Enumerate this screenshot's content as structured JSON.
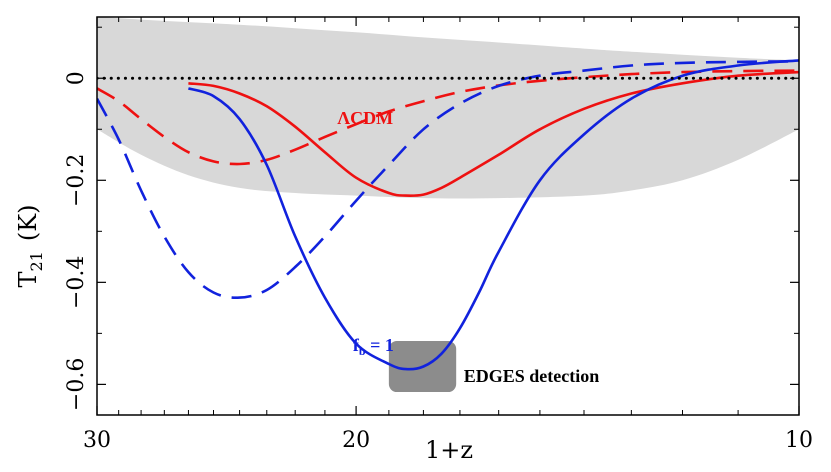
{
  "chart_data": {
    "type": "line",
    "xlabel": "1+z",
    "ylabel": "T",
    "ylabel_sub": "21",
    "ylabel_unit": "(K)",
    "x_scale": "log",
    "x_reversed": true,
    "xlim": [
      30,
      10
    ],
    "ylim": [
      -0.66,
      0.12
    ],
    "x_ticks": [
      30,
      20,
      10
    ],
    "y_ticks": [
      0,
      -0.2,
      -0.4,
      -0.6
    ],
    "y_tick_labels": [
      "0",
      "−0.2",
      "−0.4",
      "−0.6"
    ],
    "colors": {
      "red": "#ee1111",
      "blue": "#1122dd",
      "band": "#d8d8d8",
      "box": "#8c8c8c"
    },
    "series": [
      {
        "id": "lcdm-solid",
        "style": "solid",
        "color": "red",
        "x": [
          26.0,
          25.0,
          24.0,
          23.0,
          22.0,
          21.0,
          20.0,
          19.0,
          18.5,
          18.0,
          17.5,
          17.0,
          16.0,
          15.0,
          14.0,
          13.0,
          12.0,
          11.0,
          10.0
        ],
        "y": [
          -0.01,
          -0.015,
          -0.03,
          -0.055,
          -0.095,
          -0.145,
          -0.195,
          -0.225,
          -0.23,
          -0.228,
          -0.215,
          -0.195,
          -0.15,
          -0.1,
          -0.06,
          -0.03,
          -0.01,
          0.005,
          0.012
        ]
      },
      {
        "id": "lcdm-dashed",
        "style": "dashed",
        "color": "red",
        "x": [
          30.0,
          29.0,
          28.0,
          27.0,
          26.0,
          25.0,
          24.0,
          23.0,
          22.0,
          21.0,
          20.0,
          19.0,
          18.0,
          17.0,
          16.0,
          15.0,
          14.0,
          13.0,
          12.0,
          11.0,
          10.0
        ],
        "y": [
          -0.02,
          -0.045,
          -0.08,
          -0.115,
          -0.145,
          -0.163,
          -0.168,
          -0.16,
          -0.14,
          -0.115,
          -0.09,
          -0.065,
          -0.045,
          -0.027,
          -0.014,
          -0.005,
          0.002,
          0.008,
          0.012,
          0.014,
          0.015
        ]
      },
      {
        "id": "fb1-solid",
        "style": "solid",
        "color": "blue",
        "x": [
          26.0,
          25.0,
          24.0,
          23.0,
          22.0,
          21.0,
          20.0,
          19.0,
          18.5,
          18.0,
          17.5,
          17.0,
          16.5,
          16.0,
          15.0,
          14.0,
          13.0,
          12.0,
          11.0,
          10.0
        ],
        "y": [
          -0.02,
          -0.035,
          -0.08,
          -0.17,
          -0.31,
          -0.43,
          -0.52,
          -0.56,
          -0.57,
          -0.565,
          -0.54,
          -0.49,
          -0.42,
          -0.34,
          -0.2,
          -0.11,
          -0.04,
          0.005,
          0.025,
          0.035
        ]
      },
      {
        "id": "fb1-dashed",
        "style": "dashed",
        "color": "blue",
        "x": [
          30.0,
          29.0,
          28.0,
          27.0,
          26.0,
          25.0,
          24.0,
          23.0,
          22.0,
          21.0,
          20.0,
          19.0,
          18.0,
          17.0,
          16.0,
          15.0,
          14.0,
          13.0,
          12.0,
          11.0,
          10.0
        ],
        "y": [
          -0.04,
          -0.12,
          -0.22,
          -0.31,
          -0.38,
          -0.42,
          -0.43,
          -0.415,
          -0.37,
          -0.31,
          -0.24,
          -0.17,
          -0.1,
          -0.05,
          -0.015,
          0.005,
          0.015,
          0.025,
          0.03,
          0.032,
          0.033
        ]
      },
      {
        "id": "zero-line",
        "style": "dotted",
        "color": "black",
        "x": [
          30.0,
          10.0
        ],
        "y": [
          0.0,
          0.0
        ]
      }
    ],
    "band": {
      "x": [
        30.0,
        28.0,
        26.0,
        24.0,
        22.0,
        20.0,
        18.0,
        16.0,
        14.0,
        13.0,
        12.0,
        11.0,
        10.0
      ],
      "upper": [
        0.12,
        0.115,
        0.11,
        0.105,
        0.098,
        0.09,
        0.08,
        0.07,
        0.058,
        0.052,
        0.046,
        0.04,
        0.035
      ],
      "lower": [
        -0.1,
        -0.15,
        -0.19,
        -0.215,
        -0.225,
        -0.23,
        -0.235,
        -0.235,
        -0.23,
        -0.22,
        -0.2,
        -0.16,
        -0.1
      ]
    },
    "edges_box": {
      "x": [
        19.0,
        17.1
      ],
      "y": [
        -0.515,
        -0.615
      ]
    },
    "annotations": {
      "lcdm": {
        "text": "ΛCDM",
        "x": 20.6,
        "y": -0.09,
        "color": "red"
      },
      "fb": {
        "text": "f",
        "sub": "b",
        "rest": " = 1",
        "x": 20.1,
        "y": -0.535,
        "color": "blue"
      },
      "edges": {
        "text": "EDGES detection",
        "x": 16.9,
        "y": -0.595,
        "color": "black"
      }
    }
  }
}
